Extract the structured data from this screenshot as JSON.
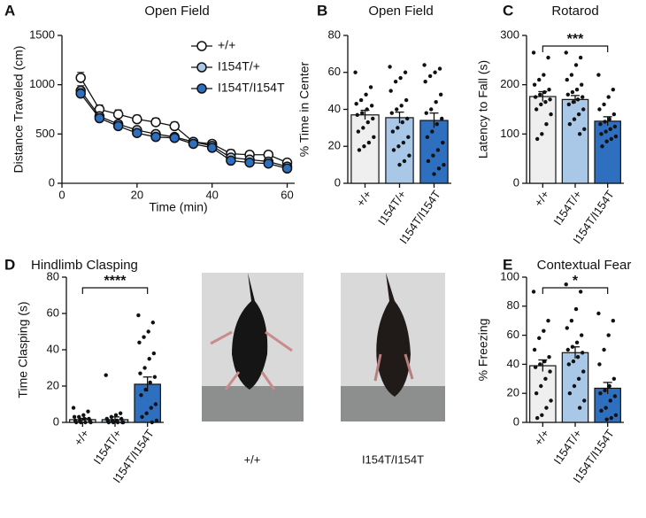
{
  "chart_data": [
    {
      "type": "line",
      "letter": "A",
      "title": "Open Field",
      "xlabel": "Time (min)",
      "ylabel": "Distance Traveled  (cm)",
      "x": [
        5,
        10,
        15,
        20,
        25,
        30,
        35,
        40,
        45,
        50,
        55,
        60
      ],
      "xlim": [
        0,
        62
      ],
      "xticks": [
        0,
        20,
        40,
        60
      ],
      "ylim": [
        0,
        1500
      ],
      "yticks": [
        0,
        500,
        1000,
        1500
      ],
      "legend": "top-right",
      "series": [
        {
          "name": "+/+",
          "color": "#ffffff",
          "values": [
            1070,
            750,
            700,
            650,
            620,
            580,
            420,
            400,
            300,
            290,
            290,
            210
          ],
          "errors": [
            55,
            45,
            45,
            40,
            40,
            40,
            35,
            35,
            40,
            35,
            35,
            25
          ]
        },
        {
          "name": "I154T/+",
          "color": "#a9c8e8",
          "values": [
            940,
            680,
            600,
            540,
            500,
            470,
            420,
            380,
            260,
            240,
            220,
            170
          ],
          "errors": [
            50,
            40,
            35,
            30,
            30,
            30,
            30,
            30,
            30,
            30,
            30,
            25
          ]
        },
        {
          "name": "I154T/I154T",
          "color": "#2f6fbf",
          "values": [
            910,
            660,
            580,
            510,
            470,
            460,
            400,
            360,
            230,
            210,
            200,
            150
          ],
          "errors": [
            50,
            40,
            35,
            30,
            30,
            30,
            30,
            30,
            30,
            30,
            30,
            25
          ]
        }
      ]
    },
    {
      "type": "bar",
      "letter": "B",
      "title": "Open Field",
      "ylabel": "% Time in Center",
      "categories": [
        "+/+",
        "I154T/+",
        "I154T/I154T"
      ],
      "colors": [
        "#efefef",
        "#a9c8e8",
        "#2f6fbf"
      ],
      "values": [
        37,
        35.5,
        34
      ],
      "errors": [
        2.5,
        3,
        4
      ],
      "ylim": [
        0,
        80
      ],
      "yticks": [
        0,
        20,
        40,
        60,
        80
      ],
      "points": [
        [
          60,
          52,
          48,
          45,
          43,
          42,
          40,
          38,
          37,
          35,
          33,
          30,
          28,
          25,
          22,
          20,
          18
        ],
        [
          63,
          60,
          57,
          55,
          50,
          45,
          42,
          40,
          38,
          35,
          33,
          30,
          28,
          25,
          22,
          20,
          18,
          15,
          12,
          10
        ],
        [
          64,
          62,
          60,
          58,
          55,
          48,
          44,
          40,
          38,
          35,
          32,
          28,
          25,
          22,
          18,
          15,
          12,
          10,
          8,
          5
        ]
      ]
    },
    {
      "type": "bar",
      "letter": "C",
      "title": "Rotarod",
      "ylabel": "Latency to Fall  (s)",
      "significance": "***",
      "categories": [
        "+/+",
        "I154T/+",
        "I154T/I154T"
      ],
      "colors": [
        "#efefef",
        "#a9c8e8",
        "#2f6fbf"
      ],
      "values": [
        176,
        170,
        126
      ],
      "errors": [
        10,
        8,
        9
      ],
      "ylim": [
        0,
        300
      ],
      "yticks": [
        0,
        100,
        200,
        300
      ],
      "points": [
        [
          265,
          255,
          220,
          210,
          200,
          190,
          185,
          180,
          175,
          170,
          165,
          160,
          150,
          140,
          120,
          100,
          90
        ],
        [
          265,
          255,
          240,
          220,
          210,
          200,
          190,
          185,
          180,
          175,
          170,
          165,
          160,
          150,
          140,
          130,
          120,
          110,
          100
        ],
        [
          220,
          190,
          175,
          160,
          150,
          140,
          130,
          125,
          120,
          115,
          110,
          105,
          100,
          95,
          90,
          85,
          75
        ]
      ]
    },
    {
      "type": "bar",
      "letter": "D",
      "title": "Hindlimb Clasping",
      "ylabel": "Time Clasping (s)",
      "significance": "****",
      "categories": [
        "+/+",
        "I154T/+",
        "I154T/I154T"
      ],
      "colors": [
        "#efefef",
        "#a9c8e8",
        "#2f6fbf"
      ],
      "values": [
        1.5,
        1.5,
        21
      ],
      "errors": [
        0.7,
        1.5,
        4
      ],
      "ylim": [
        0,
        80
      ],
      "yticks": [
        0,
        20,
        40,
        60,
        80
      ],
      "points": [
        [
          8,
          6,
          4,
          3,
          3,
          2,
          2,
          1,
          1,
          1,
          0,
          0,
          0,
          0
        ],
        [
          26,
          5,
          4,
          3,
          2,
          2,
          1,
          1,
          1,
          0,
          0,
          0,
          0,
          0
        ],
        [
          59,
          55,
          50,
          47,
          44,
          38,
          35,
          30,
          27,
          25,
          22,
          18,
          15,
          10,
          8,
          5,
          3,
          1,
          0
        ]
      ]
    },
    {
      "type": "bar",
      "letter": "E",
      "title": "Contextual Fear",
      "ylabel": "% Freezing",
      "significance": "*",
      "categories": [
        "+/+",
        "I154T/+",
        "I154T/I154T"
      ],
      "colors": [
        "#efefef",
        "#a9c8e8",
        "#2f6fbf"
      ],
      "values": [
        39,
        48,
        23.5
      ],
      "errors": [
        4,
        4,
        4
      ],
      "ylim": [
        0,
        100
      ],
      "yticks": [
        0,
        20,
        40,
        60,
        80,
        100
      ],
      "points": [
        [
          90,
          70,
          63,
          58,
          50,
          45,
          42,
          40,
          38,
          35,
          30,
          25,
          20,
          15,
          10,
          5,
          3
        ],
        [
          95,
          90,
          78,
          70,
          65,
          60,
          55,
          52,
          50,
          48,
          45,
          42,
          40,
          35,
          30,
          25,
          20,
          15,
          10
        ],
        [
          75,
          70,
          60,
          50,
          40,
          30,
          25,
          22,
          20,
          18,
          15,
          10,
          8,
          5,
          3,
          2
        ]
      ]
    }
  ],
  "photos": {
    "captions": [
      "+/+",
      "I154T/I154T"
    ]
  }
}
